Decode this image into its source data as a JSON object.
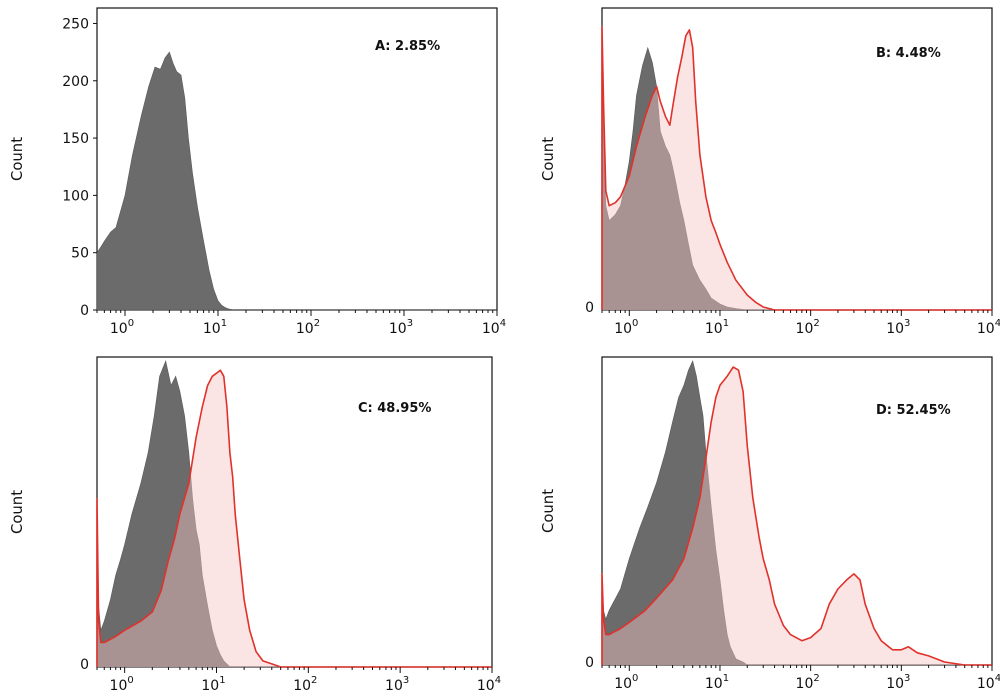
{
  "chart_data": [
    {
      "type": "area",
      "panel_label": "A: 2.85%",
      "ylabel": "Count",
      "xscale": "log",
      "xlim": [
        0.5,
        10000
      ],
      "ylim": [
        0,
        260
      ],
      "y_ticks": [
        "0",
        "50",
        "100",
        "150",
        "200",
        "250"
      ],
      "x_ticks": [
        {
          "base": "10",
          "exp": "0"
        },
        {
          "base": "10",
          "exp": "1"
        },
        {
          "base": "10",
          "exp": "2"
        },
        {
          "base": "10",
          "exp": "3"
        },
        {
          "base": "10",
          "exp": "4"
        }
      ],
      "series": [
        {
          "role": "control",
          "color": "#6b6b6b",
          "x": [
            0.5,
            0.55,
            0.6,
            0.7,
            0.8,
            1.0,
            1.2,
            1.5,
            1.8,
            2.1,
            2.4,
            2.7,
            3.0,
            3.3,
            3.6,
            4.0,
            4.4,
            4.8,
            5.3,
            6.0,
            7.0,
            8.0,
            9.0,
            10.0,
            11.0,
            12.0,
            13.0,
            15.0,
            18.0,
            10000
          ],
          "y": [
            50,
            55,
            60,
            68,
            72,
            100,
            135,
            170,
            195,
            212,
            210,
            220,
            225,
            215,
            208,
            205,
            185,
            150,
            120,
            90,
            60,
            35,
            18,
            8,
            4,
            2,
            1,
            0,
            0,
            0
          ]
        }
      ]
    },
    {
      "type": "area",
      "panel_label": "B: 4.48%",
      "ylabel": "Count",
      "xscale": "log",
      "xlim": [
        0.5,
        10000
      ],
      "ylim": [
        0,
        1
      ],
      "y_ticks": [
        "0"
      ],
      "x_ticks": [
        {
          "base": "10",
          "exp": "0"
        },
        {
          "base": "10",
          "exp": "1"
        },
        {
          "base": "10",
          "exp": "2"
        },
        {
          "base": "10",
          "exp": "3"
        },
        {
          "base": "10",
          "exp": "4"
        }
      ],
      "series": [
        {
          "role": "control",
          "color": "#6b6b6b",
          "x": [
            0.5,
            0.52,
            0.55,
            0.6,
            0.7,
            0.8,
            0.9,
            1.0,
            1.1,
            1.2,
            1.4,
            1.6,
            1.8,
            2.0,
            2.2,
            2.5,
            2.8,
            3.0,
            3.3,
            3.6,
            4.0,
            4.5,
            5.0,
            6.0,
            7.0,
            8.0,
            10.0,
            12.0,
            15.0,
            20.0,
            10000
          ],
          "y": [
            0.95,
            0.6,
            0.35,
            0.3,
            0.32,
            0.35,
            0.42,
            0.5,
            0.6,
            0.72,
            0.82,
            0.88,
            0.83,
            0.75,
            0.6,
            0.55,
            0.52,
            0.48,
            0.42,
            0.36,
            0.3,
            0.22,
            0.15,
            0.1,
            0.07,
            0.04,
            0.02,
            0.01,
            0.005,
            0,
            0
          ]
        },
        {
          "role": "treated",
          "color": "#e0322b",
          "x": [
            0.5,
            0.52,
            0.55,
            0.6,
            0.7,
            0.8,
            1.0,
            1.2,
            1.5,
            1.8,
            2.0,
            2.2,
            2.5,
            2.8,
            3.0,
            3.4,
            3.8,
            4.2,
            4.6,
            5.0,
            5.4,
            6.0,
            7.0,
            8.0,
            9.0,
            10.0,
            12.0,
            15.0,
            20.0,
            25.0,
            30.0,
            40.0,
            10000
          ],
          "y": [
            0.95,
            0.7,
            0.4,
            0.35,
            0.36,
            0.38,
            0.45,
            0.55,
            0.65,
            0.72,
            0.75,
            0.7,
            0.65,
            0.62,
            0.68,
            0.78,
            0.85,
            0.92,
            0.94,
            0.88,
            0.7,
            0.52,
            0.38,
            0.3,
            0.26,
            0.22,
            0.16,
            0.1,
            0.05,
            0.025,
            0.01,
            0,
            0
          ]
        }
      ]
    },
    {
      "type": "area",
      "panel_label": "C: 48.95%",
      "ylabel": "Count",
      "xscale": "log",
      "xlim": [
        0.5,
        10000
      ],
      "ylim": [
        0,
        1
      ],
      "y_ticks": [
        "0"
      ],
      "x_ticks": [
        {
          "base": "10",
          "exp": "0"
        },
        {
          "base": "10",
          "exp": "1"
        },
        {
          "base": "10",
          "exp": "2"
        },
        {
          "base": "10",
          "exp": "3"
        },
        {
          "base": "10",
          "exp": "4"
        }
      ],
      "series": [
        {
          "role": "control",
          "color": "#6b6b6b",
          "x": [
            0.5,
            0.52,
            0.55,
            0.6,
            0.7,
            0.8,
            0.9,
            1.0,
            1.2,
            1.5,
            1.8,
            2.1,
            2.4,
            2.8,
            3.2,
            3.6,
            4.0,
            4.5,
            5.0,
            5.5,
            6.0,
            6.5,
            7.0,
            8.0,
            9.0,
            10.0,
            11.0,
            12.0,
            14.0,
            10000
          ],
          "y": [
            0.55,
            0.2,
            0.12,
            0.15,
            0.22,
            0.3,
            0.35,
            0.4,
            0.5,
            0.6,
            0.7,
            0.82,
            0.95,
            1.0,
            0.92,
            0.95,
            0.9,
            0.82,
            0.7,
            0.55,
            0.45,
            0.4,
            0.3,
            0.2,
            0.12,
            0.07,
            0.04,
            0.02,
            0,
            0
          ]
        },
        {
          "role": "treated",
          "color": "#e0322b",
          "x": [
            0.5,
            0.52,
            0.55,
            0.6,
            0.8,
            1.0,
            1.5,
            2.0,
            2.5,
            3.0,
            3.5,
            4.0,
            5.0,
            6.0,
            7.0,
            8.0,
            9.0,
            10.0,
            11.0,
            12.0,
            13.0,
            14.0,
            15.0,
            16.0,
            18.0,
            20.0,
            23.0,
            27.0,
            32.0,
            40.0,
            50.0,
            10000
          ],
          "y": [
            0.55,
            0.15,
            0.08,
            0.08,
            0.1,
            0.12,
            0.15,
            0.18,
            0.25,
            0.35,
            0.42,
            0.5,
            0.6,
            0.75,
            0.85,
            0.92,
            0.95,
            0.96,
            0.97,
            0.95,
            0.85,
            0.7,
            0.62,
            0.5,
            0.35,
            0.22,
            0.12,
            0.05,
            0.02,
            0.01,
            0,
            0
          ]
        }
      ]
    },
    {
      "type": "area",
      "panel_label": "D: 52.45%",
      "ylabel": "Count",
      "xscale": "log",
      "xlim": [
        0.5,
        10000
      ],
      "ylim": [
        0,
        1
      ],
      "y_ticks": [
        "0"
      ],
      "x_ticks": [
        {
          "base": "10",
          "exp": "0"
        },
        {
          "base": "10",
          "exp": "1"
        },
        {
          "base": "10",
          "exp": "2"
        },
        {
          "base": "10",
          "exp": "3"
        },
        {
          "base": "10",
          "exp": "4"
        }
      ],
      "series": [
        {
          "role": "control",
          "color": "#6b6b6b",
          "x": [
            0.5,
            0.52,
            0.55,
            0.6,
            0.8,
            1.0,
            1.3,
            1.6,
            2.0,
            2.5,
            3.0,
            3.5,
            4.0,
            4.5,
            5.0,
            5.5,
            6.0,
            6.5,
            7.0,
            8.0,
            9.0,
            10.0,
            11.0,
            12.0,
            13.0,
            15.0,
            18.0,
            20.0,
            10000
          ],
          "y": [
            0.3,
            0.18,
            0.15,
            0.18,
            0.25,
            0.35,
            0.45,
            0.52,
            0.6,
            0.7,
            0.8,
            0.88,
            0.92,
            0.97,
            1.0,
            0.95,
            0.88,
            0.82,
            0.7,
            0.52,
            0.38,
            0.28,
            0.18,
            0.1,
            0.06,
            0.02,
            0.01,
            0,
            0
          ]
        },
        {
          "role": "treated",
          "color": "#e0322b",
          "x": [
            0.5,
            0.52,
            0.55,
            0.6,
            0.8,
            1.0,
            1.5,
            2.0,
            3.0,
            4.0,
            5.0,
            6.0,
            7.0,
            8.0,
            9.0,
            10.0,
            12.0,
            14.0,
            16.0,
            18.0,
            20.0,
            23.0,
            27.0,
            30.0,
            35.0,
            40.0,
            50.0,
            60.0,
            80.0,
            100.0,
            130.0,
            160.0,
            200.0,
            250.0,
            300.0,
            350.0,
            400.0,
            500.0,
            600.0,
            800.0,
            1000.0,
            1200.0,
            1500.0,
            2000.0,
            3000.0,
            5000.0,
            10000
          ],
          "y": [
            0.3,
            0.15,
            0.1,
            0.1,
            0.12,
            0.14,
            0.18,
            0.22,
            0.28,
            0.35,
            0.45,
            0.55,
            0.68,
            0.8,
            0.88,
            0.92,
            0.95,
            0.98,
            0.97,
            0.9,
            0.72,
            0.55,
            0.42,
            0.35,
            0.28,
            0.2,
            0.13,
            0.1,
            0.08,
            0.09,
            0.12,
            0.2,
            0.25,
            0.28,
            0.3,
            0.28,
            0.2,
            0.12,
            0.08,
            0.05,
            0.05,
            0.06,
            0.04,
            0.03,
            0.01,
            0,
            0
          ]
        }
      ]
    }
  ]
}
